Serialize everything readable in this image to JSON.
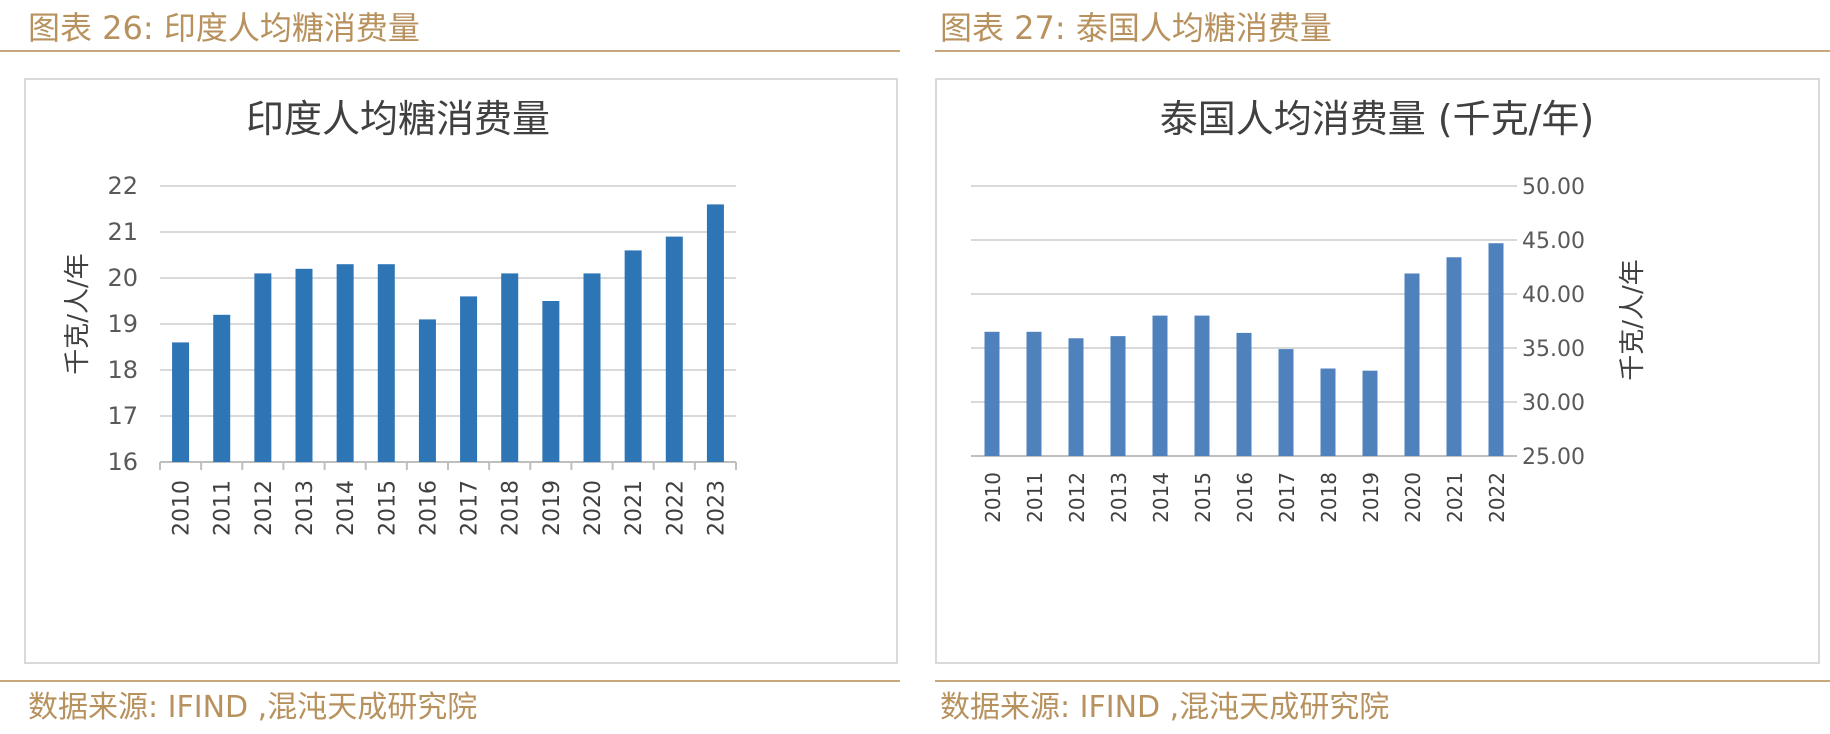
{
  "figures": [
    {
      "caption": "图表 26:  印度人均糖消费量",
      "source": "数据来源:  IFIND ,混沌天成研究院",
      "chart_data": {
        "type": "bar",
        "title": "印度人均糖消费量",
        "ylabel": "千克/人/年",
        "xlabel": "",
        "categories": [
          "2010",
          "2011",
          "2012",
          "2013",
          "2014",
          "2015",
          "2016",
          "2017",
          "2018",
          "2019",
          "2020",
          "2021",
          "2022",
          "2023"
        ],
        "values": [
          18.6,
          19.2,
          20.1,
          20.2,
          20.3,
          20.3,
          19.1,
          19.6,
          20.1,
          19.5,
          20.1,
          20.6,
          20.9,
          21.6
        ],
        "ylim": [
          16,
          22
        ],
        "yticks": [
          "16",
          "17",
          "18",
          "19",
          "20",
          "21",
          "22"
        ],
        "y_axis_side": "left",
        "grid": true,
        "bar_color": "#2e75b6"
      }
    },
    {
      "caption": "图表 27:  泰国人均糖消费量",
      "source": "数据来源:  IFIND ,混沌天成研究院",
      "chart_data": {
        "type": "bar",
        "title": "泰国人均消费量 (千克/年)",
        "ylabel": "千克/人/年",
        "xlabel": "",
        "categories": [
          "2010",
          "2011",
          "2012",
          "2013",
          "2014",
          "2015",
          "2016",
          "2017",
          "2018",
          "2019",
          "2020",
          "2021",
          "2022"
        ],
        "values": [
          36.5,
          36.5,
          35.9,
          36.1,
          38.0,
          38.0,
          36.4,
          34.9,
          33.1,
          32.9,
          41.9,
          43.4,
          44.7
        ],
        "ylim": [
          25,
          50
        ],
        "yticks": [
          "25.00",
          "30.00",
          "35.00",
          "40.00",
          "45.00",
          "50.00"
        ],
        "y_axis_side": "right",
        "grid": true,
        "bar_color": "#4f81bd"
      }
    }
  ]
}
